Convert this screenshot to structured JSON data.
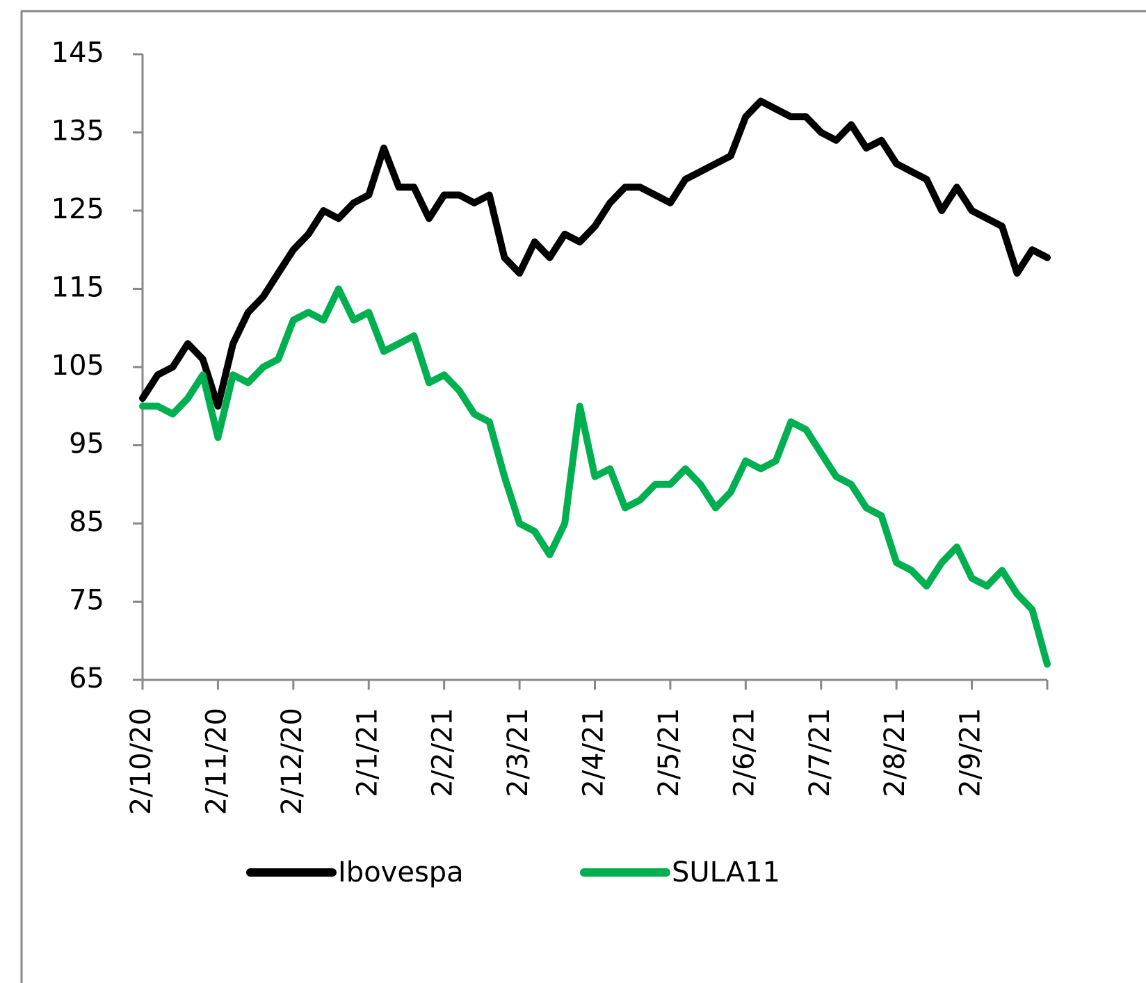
{
  "chart_data": {
    "type": "line",
    "categories": [
      "2/10/20",
      null,
      null,
      null,
      null,
      "2/11/20",
      null,
      null,
      null,
      null,
      "2/12/20",
      null,
      null,
      null,
      null,
      "2/1/21",
      null,
      null,
      null,
      null,
      "2/2/21",
      null,
      null,
      null,
      null,
      "2/3/21",
      null,
      null,
      null,
      null,
      "2/4/21",
      null,
      null,
      null,
      null,
      "2/5/21",
      null,
      null,
      null,
      null,
      "2/6/21",
      null,
      null,
      null,
      null,
      "2/7/21",
      null,
      null,
      null,
      null,
      "2/8/21",
      null,
      null,
      null,
      null,
      "2/9/21",
      null,
      null,
      null,
      null,
      null
    ],
    "series": [
      {
        "name": "Ibovespa",
        "color": "#000000",
        "values": [
          101,
          104,
          105,
          108,
          106,
          100,
          108,
          112,
          114,
          117,
          120,
          122,
          125,
          124,
          126,
          127,
          133,
          128,
          128,
          124,
          127,
          127,
          126,
          127,
          119,
          117,
          121,
          119,
          122,
          121,
          123,
          126,
          128,
          128,
          127,
          126,
          129,
          130,
          131,
          132,
          137,
          139,
          138,
          137,
          137,
          135,
          134,
          136,
          133,
          134,
          131,
          130,
          129,
          125,
          128,
          125,
          124,
          123,
          117,
          120,
          119
        ]
      },
      {
        "name": "SULA11",
        "color": "#00b050",
        "values": [
          100,
          100,
          99,
          101,
          104,
          96,
          104,
          103,
          105,
          106,
          111,
          112,
          111,
          115,
          111,
          112,
          107,
          108,
          109,
          103,
          104,
          102,
          99,
          98,
          91,
          85,
          84,
          81,
          85,
          100,
          91,
          92,
          87,
          88,
          90,
          90,
          92,
          90,
          87,
          89,
          93,
          92,
          93,
          98,
          97,
          94,
          91,
          90,
          87,
          86,
          80,
          79,
          77,
          80,
          82,
          78,
          77,
          79,
          76,
          74,
          67
        ]
      }
    ],
    "ylim": [
      65,
      145
    ],
    "yticks": [
      65,
      75,
      85,
      95,
      105,
      115,
      125,
      135,
      145
    ]
  }
}
